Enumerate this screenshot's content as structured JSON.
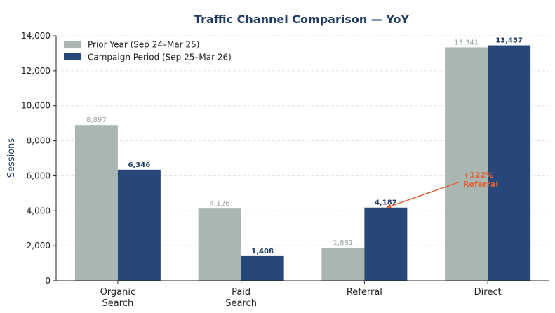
{
  "chart_data": {
    "type": "bar",
    "title": "Traffic Channel Comparison — YoY",
    "xlabel": "",
    "ylabel": "Sessions",
    "categories": [
      [
        "Organic",
        "Search"
      ],
      [
        "Paid",
        "Search"
      ],
      [
        "Referral"
      ],
      [
        "Direct"
      ]
    ],
    "series": [
      {
        "name": "Prior Year (Sep 24–Mar 25)",
        "values": [
          8897,
          4126,
          1881,
          13341
        ],
        "labels": [
          "8,897",
          "4,126",
          "1,881",
          "13,341"
        ],
        "color": "#aab6b2",
        "label_color": "#9aa4a2"
      },
      {
        "name": "Campaign Period (Sep 25–Mar 26)",
        "values": [
          6346,
          1408,
          4182,
          13457
        ],
        "labels": [
          "6,346",
          "1,408",
          "4,182",
          "13,457"
        ],
        "color": "#264778",
        "label_color": "#1f3a63"
      }
    ],
    "ylim": [
      0,
      14000
    ],
    "yticks": [
      0,
      2000,
      4000,
      6000,
      8000,
      10000,
      12000,
      14000
    ],
    "ytick_labels": [
      "0",
      "2,000",
      "4,000",
      "6,000",
      "8,000",
      "10,000",
      "12,000",
      "14,000"
    ],
    "grid": true,
    "legend_position": "top-left",
    "annotation": {
      "lines": [
        "+122%",
        "Referral"
      ],
      "target_category": 2,
      "target_series": 1,
      "text_x_value": 2.8,
      "text_y_value": 5900,
      "color": "#e0623a"
    },
    "colors": {
      "title": "#1f3a63",
      "ylabel": "#1f3a63",
      "grid": "#dde3e6"
    }
  }
}
